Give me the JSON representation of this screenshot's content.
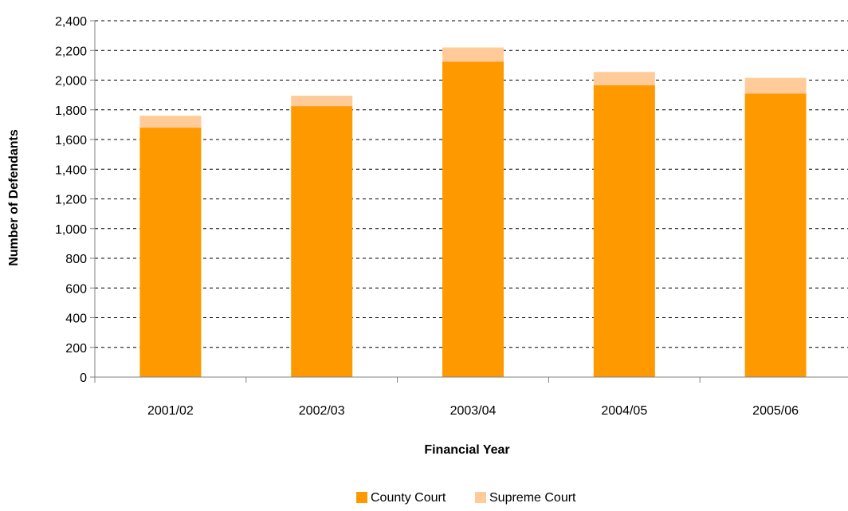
{
  "chart_data": {
    "type": "bar",
    "stacked": true,
    "title": "",
    "xlabel": "Financial Year",
    "ylabel": "Number of Defendants",
    "categories": [
      "2001/02",
      "2002/03",
      "2003/04",
      "2004/05",
      "2005/06"
    ],
    "series": [
      {
        "name": "County Court",
        "values": [
          1680,
          1825,
          2125,
          1965,
          1910
        ]
      },
      {
        "name": "Supreme Court",
        "values": [
          80,
          70,
          95,
          90,
          105
        ]
      }
    ],
    "ylim": [
      0,
      2400
    ],
    "yticks": [
      "0",
      "200",
      "400",
      "600",
      "800",
      "1,000",
      "1,200",
      "1,400",
      "1,600",
      "1,800",
      "2,000",
      "2,200",
      "2,400"
    ],
    "grid": true,
    "grid_style": "dashed",
    "legend_position": "bottom",
    "colors": {
      "County Court": "#FF9900",
      "Supreme Court": "#FFCC99",
      "grid": "#000000",
      "axis": "#808080"
    }
  }
}
